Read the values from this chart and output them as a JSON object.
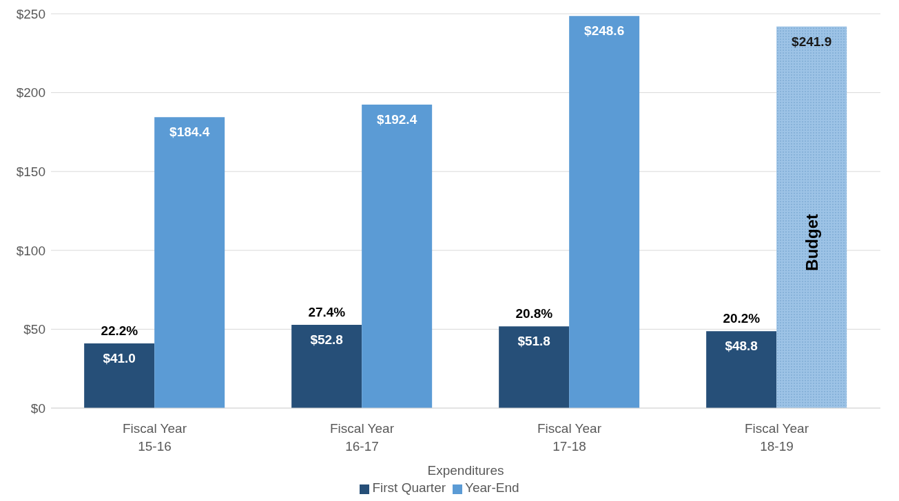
{
  "chart_data": {
    "type": "bar",
    "xlabel": "Expenditures",
    "categories": [
      "Fiscal Year 15-16",
      "Fiscal Year 16-17",
      "Fiscal Year 17-18",
      "Fiscal Year 18-19"
    ],
    "series": [
      {
        "name": "First Quarter",
        "color": "#264f78",
        "values": [
          41.0,
          52.8,
          51.8,
          48.8
        ],
        "value_labels": [
          "$41.0",
          "$52.8",
          "$51.8",
          "$48.8"
        ]
      },
      {
        "name": "Year-End",
        "color": "#5b9bd5",
        "colors": [
          "#5b9bd5",
          "#5b9bd5",
          "#5b9bd5",
          "#9dc3e6"
        ],
        "values": [
          184.4,
          192.4,
          248.6,
          241.9
        ],
        "value_labels": [
          "$184.4",
          "$192.4",
          "$248.6",
          "$241.9"
        ]
      }
    ],
    "annotations": [
      {
        "text": "22.2%",
        "x": "Fiscal Year 15-16",
        "y": 41.0
      },
      {
        "text": "27.4%",
        "x": "Fiscal Year 16-17",
        "y": 52.8
      },
      {
        "text": "20.8%",
        "x": "Fiscal Year 17-18",
        "y": 51.8
      },
      {
        "text": "20.2%",
        "x": "Fiscal Year 18-19",
        "y": 48.8
      },
      {
        "text": "Budget",
        "x": "Fiscal Year 18-19",
        "y": 105
      }
    ],
    "ylim": [
      0,
      250
    ],
    "yticks": [
      {
        "value": 0,
        "label": "$0"
      },
      {
        "value": 50,
        "label": "$50"
      },
      {
        "value": 100,
        "label": "$100"
      },
      {
        "value": 150,
        "label": "$150"
      },
      {
        "value": 200,
        "label": "$200"
      },
      {
        "value": 250,
        "label": "$250"
      }
    ],
    "grid": "y",
    "legend": "bottom"
  }
}
